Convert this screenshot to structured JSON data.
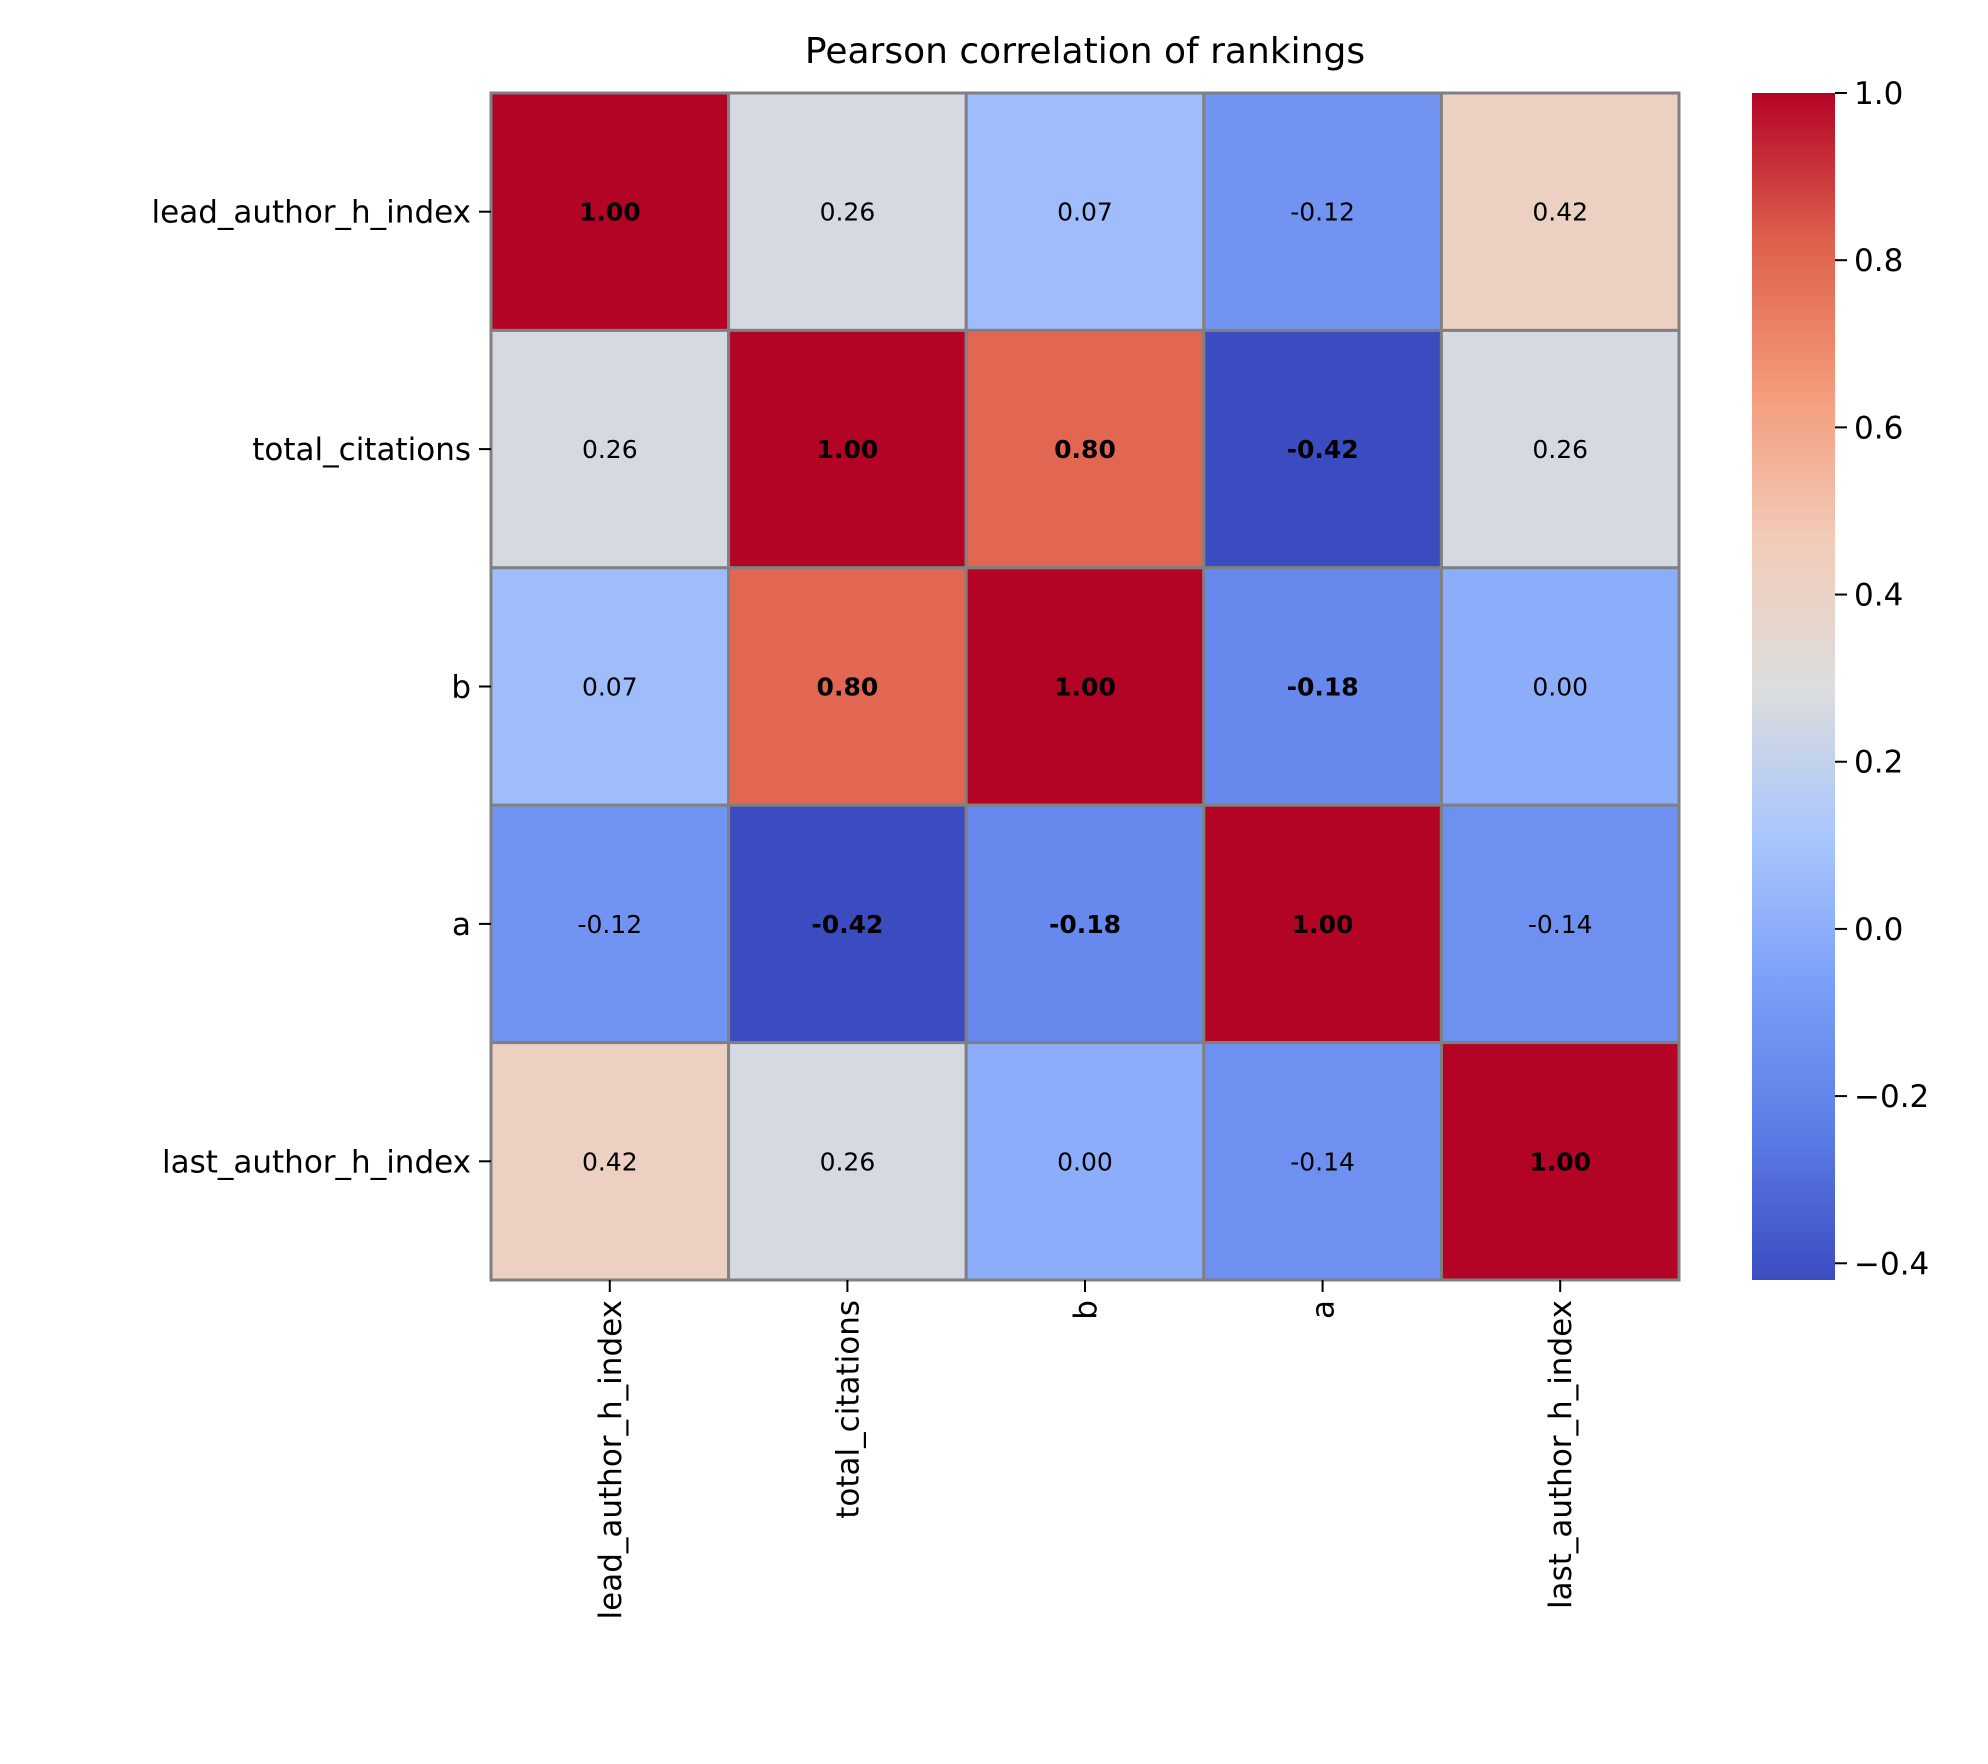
{
  "chart_data": {
    "type": "heatmap",
    "title": "Pearson correlation of rankings",
    "row_labels": [
      "lead_author_h_index",
      "total_citations",
      "b",
      "a",
      "last_author_h_index"
    ],
    "col_labels": [
      "lead_author_h_index",
      "total_citations",
      "b",
      "a",
      "last_author_h_index"
    ],
    "values": [
      [
        1.0,
        0.26,
        0.07,
        -0.12,
        0.42
      ],
      [
        0.26,
        1.0,
        0.8,
        -0.42,
        0.26
      ],
      [
        0.07,
        0.8,
        1.0,
        -0.18,
        0.0
      ],
      [
        -0.12,
        -0.42,
        -0.18,
        1.0,
        -0.14
      ],
      [
        0.42,
        0.26,
        0.0,
        -0.14,
        1.0
      ]
    ],
    "annotations": [
      [
        "1.00",
        "0.26",
        "0.07",
        "-0.12",
        "0.42"
      ],
      [
        "0.26",
        "1.00",
        "0.80",
        "-0.42",
        "0.26"
      ],
      [
        "0.07",
        "0.80",
        "1.00",
        "-0.18",
        "0.00"
      ],
      [
        "-0.12",
        "-0.42",
        "-0.18",
        "1.00",
        "-0.14"
      ],
      [
        "0.42",
        "0.26",
        "0.00",
        "-0.14",
        "1.00"
      ]
    ],
    "bold_annotations": [
      [
        true,
        false,
        false,
        false,
        false
      ],
      [
        false,
        true,
        true,
        true,
        false
      ],
      [
        false,
        true,
        true,
        true,
        false
      ],
      [
        false,
        true,
        true,
        true,
        false
      ],
      [
        false,
        false,
        false,
        false,
        true
      ]
    ],
    "colormap": "coolwarm",
    "vmin": -0.42,
    "vmax": 1.0,
    "colorbar": {
      "ticks": [
        -0.4,
        -0.2,
        0.0,
        0.2,
        0.4,
        0.6,
        0.8,
        1.0
      ],
      "tick_labels": [
        "−0.4",
        "−0.2",
        "0.0",
        "0.2",
        "0.4",
        "0.6",
        "0.8",
        "1.0"
      ]
    },
    "cell_edge_color": "#808080"
  }
}
